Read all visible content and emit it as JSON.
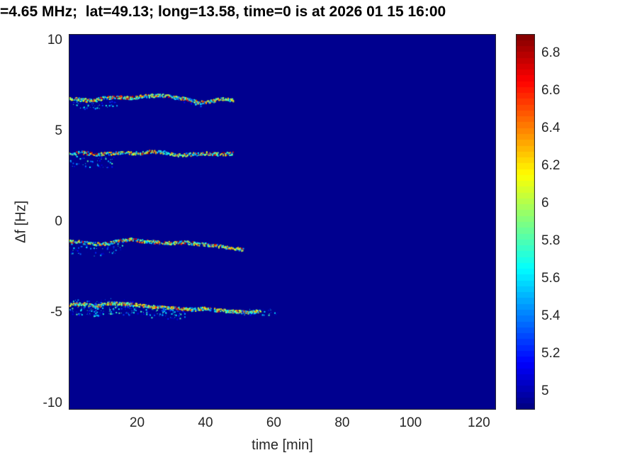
{
  "title": "=4.65 MHz;  lat=49.13; long=13.58, time=0 is at 2026 01 15 16:00",
  "axes": {
    "xlabel": "time [min]",
    "ylabel": "Δf [Hz]",
    "xtick_values": [
      20,
      40,
      60,
      80,
      100,
      120
    ],
    "xtick_labels": [
      "20",
      "40",
      "60",
      "80",
      "100",
      "120"
    ],
    "ytick_values": [
      -10,
      -5,
      0,
      5,
      10
    ],
    "ytick_labels": [
      "-10",
      "-5",
      "0",
      "5",
      "10"
    ],
    "text_color": "#262626"
  },
  "colorbar": {
    "tick_values": [
      5,
      5.2,
      5.4,
      5.6,
      5.8,
      6,
      6.2,
      6.4,
      6.6,
      6.8
    ],
    "tick_labels": [
      "5",
      "5.2",
      "5.4",
      "5.6",
      "5.8",
      "6",
      "6.2",
      "6.4",
      "6.6",
      "6.8"
    ],
    "range": [
      4.9,
      6.9
    ]
  },
  "chart_data": {
    "type": "heatmap",
    "title": "=4.65 MHz;  lat=49.13; long=13.58, time=0 is at 2026 01 15 16:00",
    "xlabel": "time [min]",
    "ylabel": "Δf [Hz]",
    "xlim": [
      0,
      125
    ],
    "ylim": [
      -10.35,
      10.35
    ],
    "colormap": "jet",
    "color_range": [
      4.9,
      6.9
    ],
    "background_value": 4.9,
    "background_color": "#00008F",
    "seed": 12,
    "intensity_levels": {
      "ranges": [
        [
          5.35,
          5.95
        ],
        [
          5.95,
          6.35
        ],
        [
          6.35,
          6.9
        ]
      ],
      "weights": [
        0.5,
        0.28,
        0.22
      ]
    },
    "speckle_intensity": [
      4.95,
      5.85
    ],
    "traces": [
      {
        "name": "doppler-trace-plus7",
        "density": 1.0,
        "points": [
          [
            0,
            6.85
          ],
          [
            4,
            6.75
          ],
          [
            7,
            6.7
          ],
          [
            10,
            6.85
          ],
          [
            14,
            6.9
          ],
          [
            18,
            6.85
          ],
          [
            22,
            6.95
          ],
          [
            26,
            7.0
          ],
          [
            30,
            6.95
          ],
          [
            34,
            6.8
          ],
          [
            38,
            6.6
          ],
          [
            41,
            6.65
          ],
          [
            44,
            6.8
          ],
          [
            48,
            6.75
          ]
        ],
        "speckles": [
          {
            "t0": 1,
            "t1": 14,
            "off": [
              0.15,
              0.55
            ],
            "count": 50
          },
          {
            "t0": 30,
            "t1": 40,
            "off": [
              0.05,
              0.25
            ],
            "count": 15
          }
        ]
      },
      {
        "name": "doppler-trace-plus4",
        "density": 1.0,
        "points": [
          [
            0,
            3.8
          ],
          [
            4,
            3.85
          ],
          [
            8,
            3.75
          ],
          [
            12,
            3.8
          ],
          [
            16,
            3.85
          ],
          [
            20,
            3.8
          ],
          [
            24,
            3.9
          ],
          [
            28,
            3.85
          ],
          [
            32,
            3.7
          ],
          [
            36,
            3.75
          ],
          [
            40,
            3.8
          ],
          [
            44,
            3.75
          ],
          [
            48,
            3.8
          ]
        ],
        "speckles": [
          {
            "t0": 0,
            "t1": 13,
            "off": [
              0.15,
              0.8
            ],
            "count": 55
          }
        ]
      },
      {
        "name": "doppler-trace-minus1",
        "density": 1.1,
        "points": [
          [
            0,
            -1.05
          ],
          [
            4,
            -1.1
          ],
          [
            8,
            -1.2
          ],
          [
            12,
            -1.15
          ],
          [
            15,
            -1.0
          ],
          [
            18,
            -0.95
          ],
          [
            22,
            -1.05
          ],
          [
            26,
            -1.1
          ],
          [
            30,
            -1.15
          ],
          [
            34,
            -1.1
          ],
          [
            38,
            -1.2
          ],
          [
            42,
            -1.25
          ],
          [
            46,
            -1.4
          ],
          [
            51,
            -1.5
          ]
        ],
        "speckles": [
          {
            "t0": 0,
            "t1": 16,
            "off": [
              0.1,
              0.7
            ],
            "count": 60
          }
        ]
      },
      {
        "name": "doppler-trace-minus5",
        "density": 1.6,
        "points": [
          [
            0,
            -4.55
          ],
          [
            4,
            -4.5
          ],
          [
            8,
            -4.6
          ],
          [
            12,
            -4.45
          ],
          [
            16,
            -4.5
          ],
          [
            20,
            -4.55
          ],
          [
            24,
            -4.65
          ],
          [
            28,
            -4.7
          ],
          [
            32,
            -4.75
          ],
          [
            36,
            -4.8
          ],
          [
            40,
            -4.75
          ],
          [
            44,
            -4.85
          ],
          [
            48,
            -4.9
          ],
          [
            52,
            -4.95
          ],
          [
            56,
            -4.9
          ]
        ],
        "speckles": [
          {
            "t0": 0,
            "t1": 34,
            "off": [
              0.1,
              0.6
            ],
            "count": 200
          },
          {
            "t0": 0,
            "t1": 20,
            "off": [
              -0.25,
              -0.05
            ],
            "count": 30
          },
          {
            "t0": 48,
            "t1": 61,
            "off": [
              -0.15,
              0.25
            ],
            "count": 28
          }
        ]
      }
    ]
  }
}
